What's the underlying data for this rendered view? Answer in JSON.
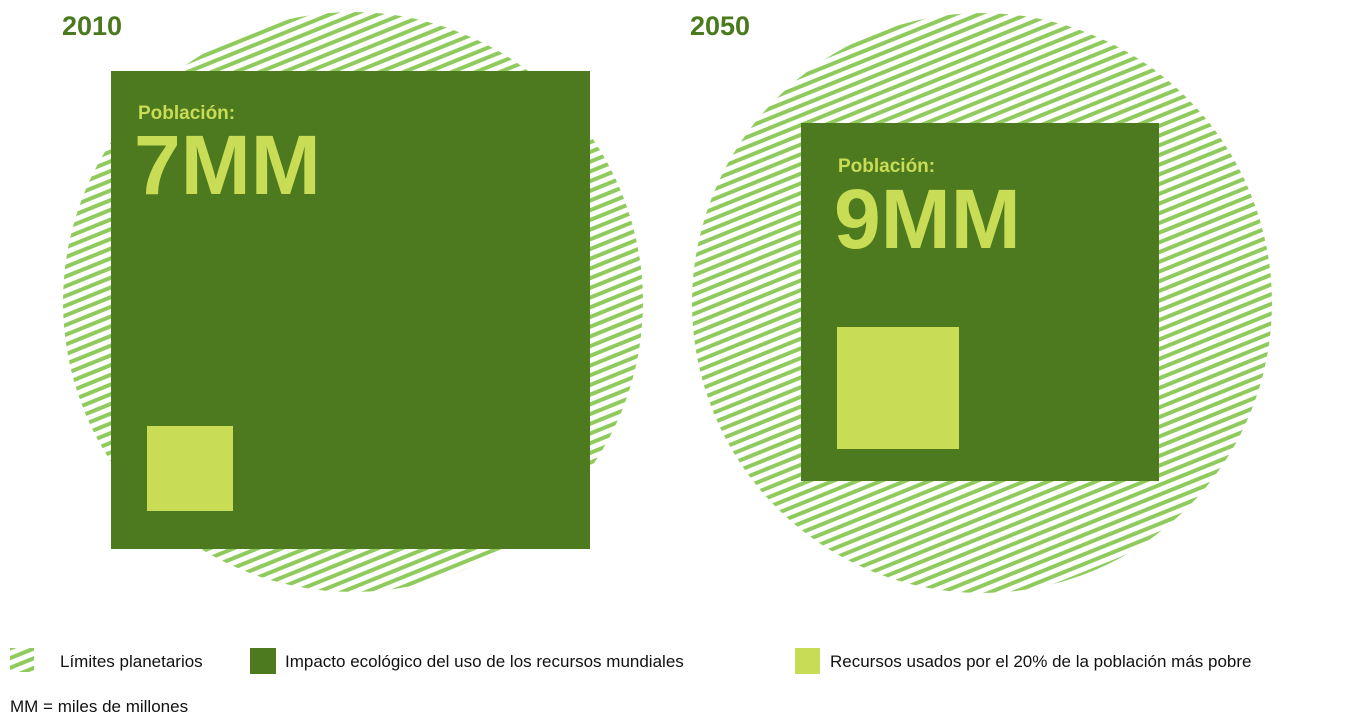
{
  "panels": [
    {
      "year": "2010",
      "population_label": "Población:",
      "population": "7MM"
    },
    {
      "year": "2050",
      "population_label": "Población:",
      "population": "9MM"
    }
  ],
  "legend": [
    "Límites planetarios",
    "Impacto ecológico del uso de los recursos mundiales",
    "Recursos usados por el 20% de la población más pobre"
  ],
  "footnote": "MM = miles de millones"
}
